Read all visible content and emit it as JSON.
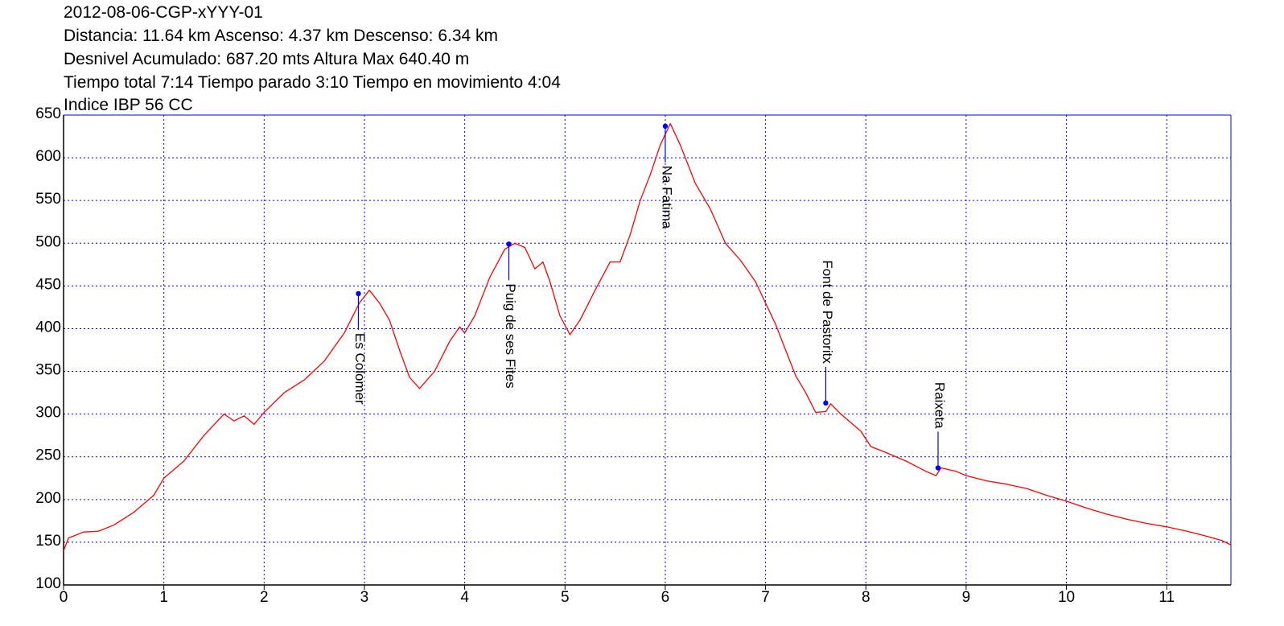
{
  "header": {
    "lines": [
      "2012-08-06-CGP-xYYY-01",
      "Distancia: 11.64 km Ascenso: 4.37 km Descenso: 6.34 km",
      "Desnivel Acumulado: 687.20 mts  Altura Max 640.40 m",
      "Tiempo total 7:14 Tiempo parado 3:10 Tiempo en movimiento 4:04",
      "Indice IBP 56 CC"
    ]
  },
  "colors": {
    "profile": "#ff0000",
    "frame": "#0000ff",
    "grid": "#0000ff",
    "waypoint": "#0000ff",
    "axis": "#000000"
  },
  "chart_data": {
    "type": "line",
    "title": "",
    "xlabel": "",
    "ylabel": "",
    "xlim": [
      0,
      11.64
    ],
    "ylim": [
      100,
      650
    ],
    "x_ticks": [
      0,
      1,
      2,
      3,
      4,
      5,
      6,
      7,
      8,
      9,
      10,
      11
    ],
    "y_ticks": [
      100,
      150,
      200,
      250,
      300,
      350,
      400,
      450,
      500,
      550,
      600,
      650
    ],
    "grid": true,
    "series": [
      {
        "values": [
          [
            0,
            140
          ],
          [
            0.05,
            155
          ],
          [
            0.2,
            162
          ],
          [
            0.35,
            163
          ],
          [
            0.5,
            170
          ],
          [
            0.7,
            185
          ],
          [
            0.9,
            205
          ],
          [
            1.0,
            225
          ],
          [
            1.2,
            245
          ],
          [
            1.4,
            275
          ],
          [
            1.6,
            300
          ],
          [
            1.7,
            292
          ],
          [
            1.8,
            298
          ],
          [
            1.9,
            288
          ],
          [
            2.0,
            302
          ],
          [
            2.2,
            325
          ],
          [
            2.4,
            340
          ],
          [
            2.6,
            362
          ],
          [
            2.8,
            395
          ],
          [
            2.95,
            430
          ],
          [
            3.05,
            445
          ],
          [
            3.15,
            430
          ],
          [
            3.25,
            410
          ],
          [
            3.35,
            375
          ],
          [
            3.45,
            343
          ],
          [
            3.55,
            330
          ],
          [
            3.7,
            350
          ],
          [
            3.85,
            385
          ],
          [
            3.95,
            402
          ],
          [
            4.0,
            395
          ],
          [
            4.1,
            415
          ],
          [
            4.25,
            460
          ],
          [
            4.4,
            493
          ],
          [
            4.5,
            500
          ],
          [
            4.6,
            495
          ],
          [
            4.7,
            470
          ],
          [
            4.78,
            478
          ],
          [
            4.85,
            455
          ],
          [
            4.95,
            415
          ],
          [
            5.05,
            393
          ],
          [
            5.15,
            410
          ],
          [
            5.3,
            445
          ],
          [
            5.45,
            478
          ],
          [
            5.55,
            478
          ],
          [
            5.65,
            510
          ],
          [
            5.75,
            550
          ],
          [
            5.85,
            580
          ],
          [
            5.95,
            615
          ],
          [
            6.05,
            640
          ],
          [
            6.15,
            615
          ],
          [
            6.3,
            570
          ],
          [
            6.45,
            540
          ],
          [
            6.6,
            500
          ],
          [
            6.75,
            480
          ],
          [
            6.9,
            455
          ],
          [
            7.0,
            430
          ],
          [
            7.1,
            405
          ],
          [
            7.2,
            375
          ],
          [
            7.3,
            345
          ],
          [
            7.4,
            325
          ],
          [
            7.5,
            302
          ],
          [
            7.6,
            303
          ],
          [
            7.65,
            312
          ],
          [
            7.75,
            300
          ],
          [
            7.85,
            290
          ],
          [
            7.95,
            280
          ],
          [
            8.05,
            262
          ],
          [
            8.2,
            255
          ],
          [
            8.4,
            245
          ],
          [
            8.6,
            233
          ],
          [
            8.7,
            228
          ],
          [
            8.75,
            237
          ],
          [
            8.9,
            233
          ],
          [
            9.0,
            228
          ],
          [
            9.2,
            222
          ],
          [
            9.4,
            218
          ],
          [
            9.6,
            213
          ],
          [
            9.8,
            205
          ],
          [
            10.0,
            198
          ],
          [
            10.2,
            190
          ],
          [
            10.4,
            183
          ],
          [
            10.6,
            177
          ],
          [
            10.8,
            172
          ],
          [
            11.0,
            168
          ],
          [
            11.2,
            163
          ],
          [
            11.4,
            157
          ],
          [
            11.55,
            152
          ],
          [
            11.64,
            147
          ]
        ]
      }
    ],
    "waypoints": [
      {
        "name": "Es Colomer",
        "x": 2.94,
        "y": 441
      },
      {
        "name": "Puig de ses Fites",
        "x": 4.44,
        "y": 499
      },
      {
        "name": "Na Fatima",
        "x": 6.0,
        "y": 637
      },
      {
        "name": "Font de Pastoritx",
        "x": 7.6,
        "y": 313
      },
      {
        "name": "Raixeta",
        "x": 8.72,
        "y": 237
      }
    ]
  }
}
